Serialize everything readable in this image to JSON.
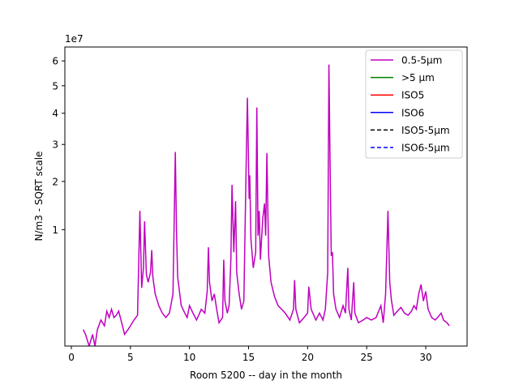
{
  "chart_data": {
    "type": "line",
    "title": "",
    "xlabel": "Room 5200 -- day in the month",
    "ylabel": "N/m3 - SQRT scale",
    "y_offset_label": "1e7",
    "y_scale": "sqrt",
    "y_multiplier": 10000000,
    "xlim": [
      -0.55,
      33.5
    ],
    "ylim": [
      0.0,
      6.6
    ],
    "grid": false,
    "legend_position": "top-right",
    "x_ticks": [
      {
        "value": 0,
        "label": "0"
      },
      {
        "value": 5,
        "label": "5"
      },
      {
        "value": 10,
        "label": "10"
      },
      {
        "value": 15,
        "label": "15"
      },
      {
        "value": 20,
        "label": "20"
      },
      {
        "value": 25,
        "label": "25"
      },
      {
        "value": 30,
        "label": "30"
      }
    ],
    "y_ticks": [
      {
        "value": 1,
        "label": "1"
      },
      {
        "value": 2,
        "label": "2"
      },
      {
        "value": 3,
        "label": "3"
      },
      {
        "value": 4,
        "label": "4"
      },
      {
        "value": 5,
        "label": "5"
      },
      {
        "value": 6,
        "label": "6"
      }
    ],
    "series": [
      {
        "name": "0.5-5µm",
        "color": "#bf00bf",
        "style": "solid",
        "points": [
          [
            1.0,
            0.02
          ],
          [
            1.2,
            0.01
          ],
          [
            1.5,
            0.0
          ],
          [
            1.8,
            0.01
          ],
          [
            2.0,
            0.0
          ],
          [
            2.2,
            0.02
          ],
          [
            2.5,
            0.05
          ],
          [
            2.8,
            0.03
          ],
          [
            3.0,
            0.09
          ],
          [
            3.2,
            0.06
          ],
          [
            3.4,
            0.1
          ],
          [
            3.6,
            0.06
          ],
          [
            3.8,
            0.07
          ],
          [
            4.0,
            0.09
          ],
          [
            4.2,
            0.05
          ],
          [
            4.5,
            0.01
          ],
          [
            4.8,
            0.02
          ],
          [
            5.0,
            0.03
          ],
          [
            5.3,
            0.05
          ],
          [
            5.6,
            0.07
          ],
          [
            5.8,
            1.35
          ],
          [
            5.95,
            0.25
          ],
          [
            6.1,
            0.45
          ],
          [
            6.2,
            1.15
          ],
          [
            6.35,
            0.38
          ],
          [
            6.5,
            0.3
          ],
          [
            6.7,
            0.4
          ],
          [
            6.8,
            0.68
          ],
          [
            6.9,
            0.35
          ],
          [
            7.1,
            0.2
          ],
          [
            7.4,
            0.12
          ],
          [
            7.7,
            0.08
          ],
          [
            8.0,
            0.06
          ],
          [
            8.3,
            0.08
          ],
          [
            8.6,
            0.2
          ],
          [
            8.8,
            2.78
          ],
          [
            8.9,
            0.95
          ],
          [
            9.0,
            0.35
          ],
          [
            9.3,
            0.12
          ],
          [
            9.6,
            0.08
          ],
          [
            9.8,
            0.06
          ],
          [
            10.0,
            0.12
          ],
          [
            10.3,
            0.08
          ],
          [
            10.6,
            0.05
          ],
          [
            11.0,
            0.1
          ],
          [
            11.3,
            0.08
          ],
          [
            11.5,
            0.22
          ],
          [
            11.6,
            0.72
          ],
          [
            11.7,
            0.3
          ],
          [
            11.9,
            0.15
          ],
          [
            12.1,
            0.2
          ],
          [
            12.3,
            0.1
          ],
          [
            12.5,
            0.04
          ],
          [
            12.8,
            0.06
          ],
          [
            12.9,
            0.55
          ],
          [
            13.0,
            0.15
          ],
          [
            13.2,
            0.08
          ],
          [
            13.35,
            0.12
          ],
          [
            13.5,
            0.55
          ],
          [
            13.6,
            1.92
          ],
          [
            13.75,
            0.65
          ],
          [
            13.9,
            1.55
          ],
          [
            14.0,
            0.4
          ],
          [
            14.2,
            0.2
          ],
          [
            14.4,
            0.1
          ],
          [
            14.6,
            0.15
          ],
          [
            14.8,
            2.5
          ],
          [
            14.9,
            4.55
          ],
          [
            15.0,
            2.45
          ],
          [
            15.05,
            1.6
          ],
          [
            15.1,
            2.15
          ],
          [
            15.2,
            0.85
          ],
          [
            15.4,
            0.45
          ],
          [
            15.6,
            0.65
          ],
          [
            15.7,
            4.2
          ],
          [
            15.8,
            0.9
          ],
          [
            15.9,
            1.35
          ],
          [
            16.0,
            0.55
          ],
          [
            16.2,
            1.2
          ],
          [
            16.35,
            1.5
          ],
          [
            16.45,
            0.9
          ],
          [
            16.55,
            2.75
          ],
          [
            16.7,
            0.6
          ],
          [
            16.9,
            0.3
          ],
          [
            17.2,
            0.18
          ],
          [
            17.5,
            0.12
          ],
          [
            17.8,
            0.1
          ],
          [
            18.1,
            0.08
          ],
          [
            18.5,
            0.05
          ],
          [
            18.8,
            0.1
          ],
          [
            18.9,
            0.32
          ],
          [
            19.0,
            0.1
          ],
          [
            19.3,
            0.04
          ],
          [
            19.7,
            0.06
          ],
          [
            20.0,
            0.08
          ],
          [
            20.1,
            0.26
          ],
          [
            20.3,
            0.1
          ],
          [
            20.7,
            0.05
          ],
          [
            21.0,
            0.08
          ],
          [
            21.3,
            0.05
          ],
          [
            21.5,
            0.1
          ],
          [
            21.7,
            0.4
          ],
          [
            21.8,
            5.85
          ],
          [
            21.9,
            2.5
          ],
          [
            22.0,
            0.6
          ],
          [
            22.1,
            0.65
          ],
          [
            22.2,
            0.2
          ],
          [
            22.4,
            0.1
          ],
          [
            22.7,
            0.06
          ],
          [
            23.0,
            0.12
          ],
          [
            23.2,
            0.08
          ],
          [
            23.4,
            0.45
          ],
          [
            23.5,
            0.1
          ],
          [
            23.7,
            0.05
          ],
          [
            23.9,
            0.3
          ],
          [
            24.0,
            0.08
          ],
          [
            24.3,
            0.04
          ],
          [
            24.7,
            0.05
          ],
          [
            25.0,
            0.06
          ],
          [
            25.4,
            0.05
          ],
          [
            25.8,
            0.06
          ],
          [
            26.2,
            0.12
          ],
          [
            26.4,
            0.04
          ],
          [
            26.6,
            0.2
          ],
          [
            26.8,
            1.35
          ],
          [
            26.95,
            0.3
          ],
          [
            27.1,
            0.15
          ],
          [
            27.3,
            0.07
          ],
          [
            27.6,
            0.09
          ],
          [
            27.9,
            0.11
          ],
          [
            28.2,
            0.08
          ],
          [
            28.5,
            0.07
          ],
          [
            28.8,
            0.09
          ],
          [
            29.0,
            0.12
          ],
          [
            29.2,
            0.1
          ],
          [
            29.4,
            0.2
          ],
          [
            29.6,
            0.28
          ],
          [
            29.8,
            0.15
          ],
          [
            30.0,
            0.22
          ],
          [
            30.2,
            0.1
          ],
          [
            30.5,
            0.06
          ],
          [
            30.8,
            0.05
          ],
          [
            31.0,
            0.06
          ],
          [
            31.3,
            0.08
          ],
          [
            31.5,
            0.05
          ],
          [
            31.8,
            0.04
          ],
          [
            32.0,
            0.03
          ]
        ]
      },
      {
        "name": ">5 µm",
        "color": "#008000",
        "style": "solid",
        "points": []
      },
      {
        "name": "ISO5",
        "color": "#ff0000",
        "style": "solid",
        "points": []
      },
      {
        "name": "ISO6",
        "color": "#0000ff",
        "style": "solid",
        "points": []
      },
      {
        "name": "ISO5-5µm",
        "color": "#000000",
        "style": "dashed",
        "points": []
      },
      {
        "name": "ISO6-5µm",
        "color": "#0000ff",
        "style": "dashed",
        "points": []
      }
    ]
  }
}
